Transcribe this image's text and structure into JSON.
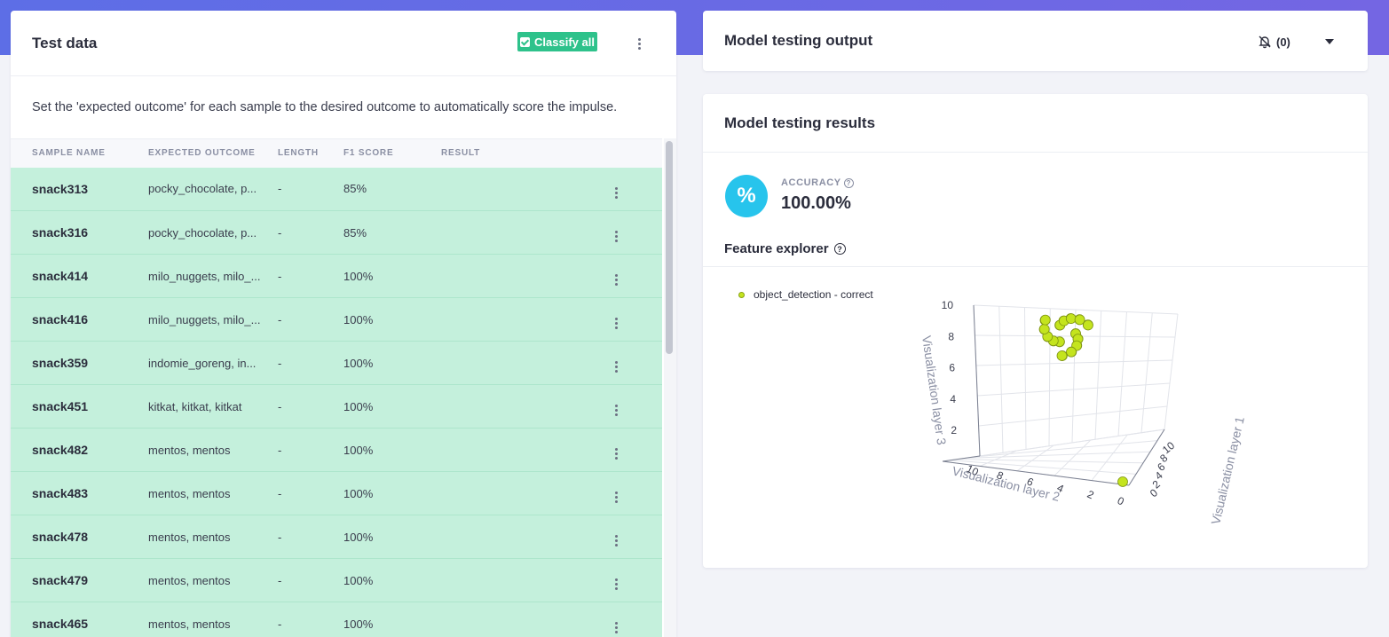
{
  "test_data": {
    "title": "Test data",
    "classify_button": "Classify all",
    "description": "Set the 'expected outcome' for each sample to the desired outcome to automatically score the impulse.",
    "columns": [
      "SAMPLE NAME",
      "EXPECTED OUTCOME",
      "LENGTH",
      "F1 SCORE",
      "RESULT"
    ],
    "rows": [
      {
        "name": "snack313",
        "expected": "pocky_chocolate, p...",
        "length": "-",
        "f1": "85%"
      },
      {
        "name": "snack316",
        "expected": "pocky_chocolate, p...",
        "length": "-",
        "f1": "85%"
      },
      {
        "name": "snack414",
        "expected": "milo_nuggets, milo_...",
        "length": "-",
        "f1": "100%"
      },
      {
        "name": "snack416",
        "expected": "milo_nuggets, milo_...",
        "length": "-",
        "f1": "100%"
      },
      {
        "name": "snack359",
        "expected": "indomie_goreng, in...",
        "length": "-",
        "f1": "100%"
      },
      {
        "name": "snack451",
        "expected": "kitkat, kitkat, kitkat",
        "length": "-",
        "f1": "100%"
      },
      {
        "name": "snack482",
        "expected": "mentos, mentos",
        "length": "-",
        "f1": "100%"
      },
      {
        "name": "snack483",
        "expected": "mentos, mentos",
        "length": "-",
        "f1": "100%"
      },
      {
        "name": "snack478",
        "expected": "mentos, mentos",
        "length": "-",
        "f1": "100%"
      },
      {
        "name": "snack479",
        "expected": "mentos, mentos",
        "length": "-",
        "f1": "100%"
      },
      {
        "name": "snack465",
        "expected": "mentos, mentos",
        "length": "-",
        "f1": "100%"
      }
    ],
    "row_color": "#c4f0dc"
  },
  "output": {
    "title": "Model testing output",
    "notification_count": "(0)"
  },
  "results": {
    "title": "Model testing results",
    "accuracy_label": "ACCURACY",
    "accuracy_value": "100.00%",
    "accuracy_icon": "%",
    "feature_explorer_title": "Feature explorer",
    "legend_label": "object_detection - correct",
    "point_color": "#c4e41e"
  },
  "chart_data": {
    "type": "scatter",
    "z_ticks": [
      "10",
      "8",
      "6",
      "4",
      "2"
    ],
    "x_ticks": [
      "10",
      "8",
      "6",
      "4",
      "2",
      "0"
    ],
    "y_ticks": [
      "10",
      "8",
      "6",
      "4",
      "2",
      "0"
    ],
    "xlabel": "Visualization layer 2",
    "ylabel": "Visualization layer 1",
    "zlabel": "Visualization layer 3",
    "series": [
      {
        "name": "object_detection - correct"
      }
    ]
  }
}
